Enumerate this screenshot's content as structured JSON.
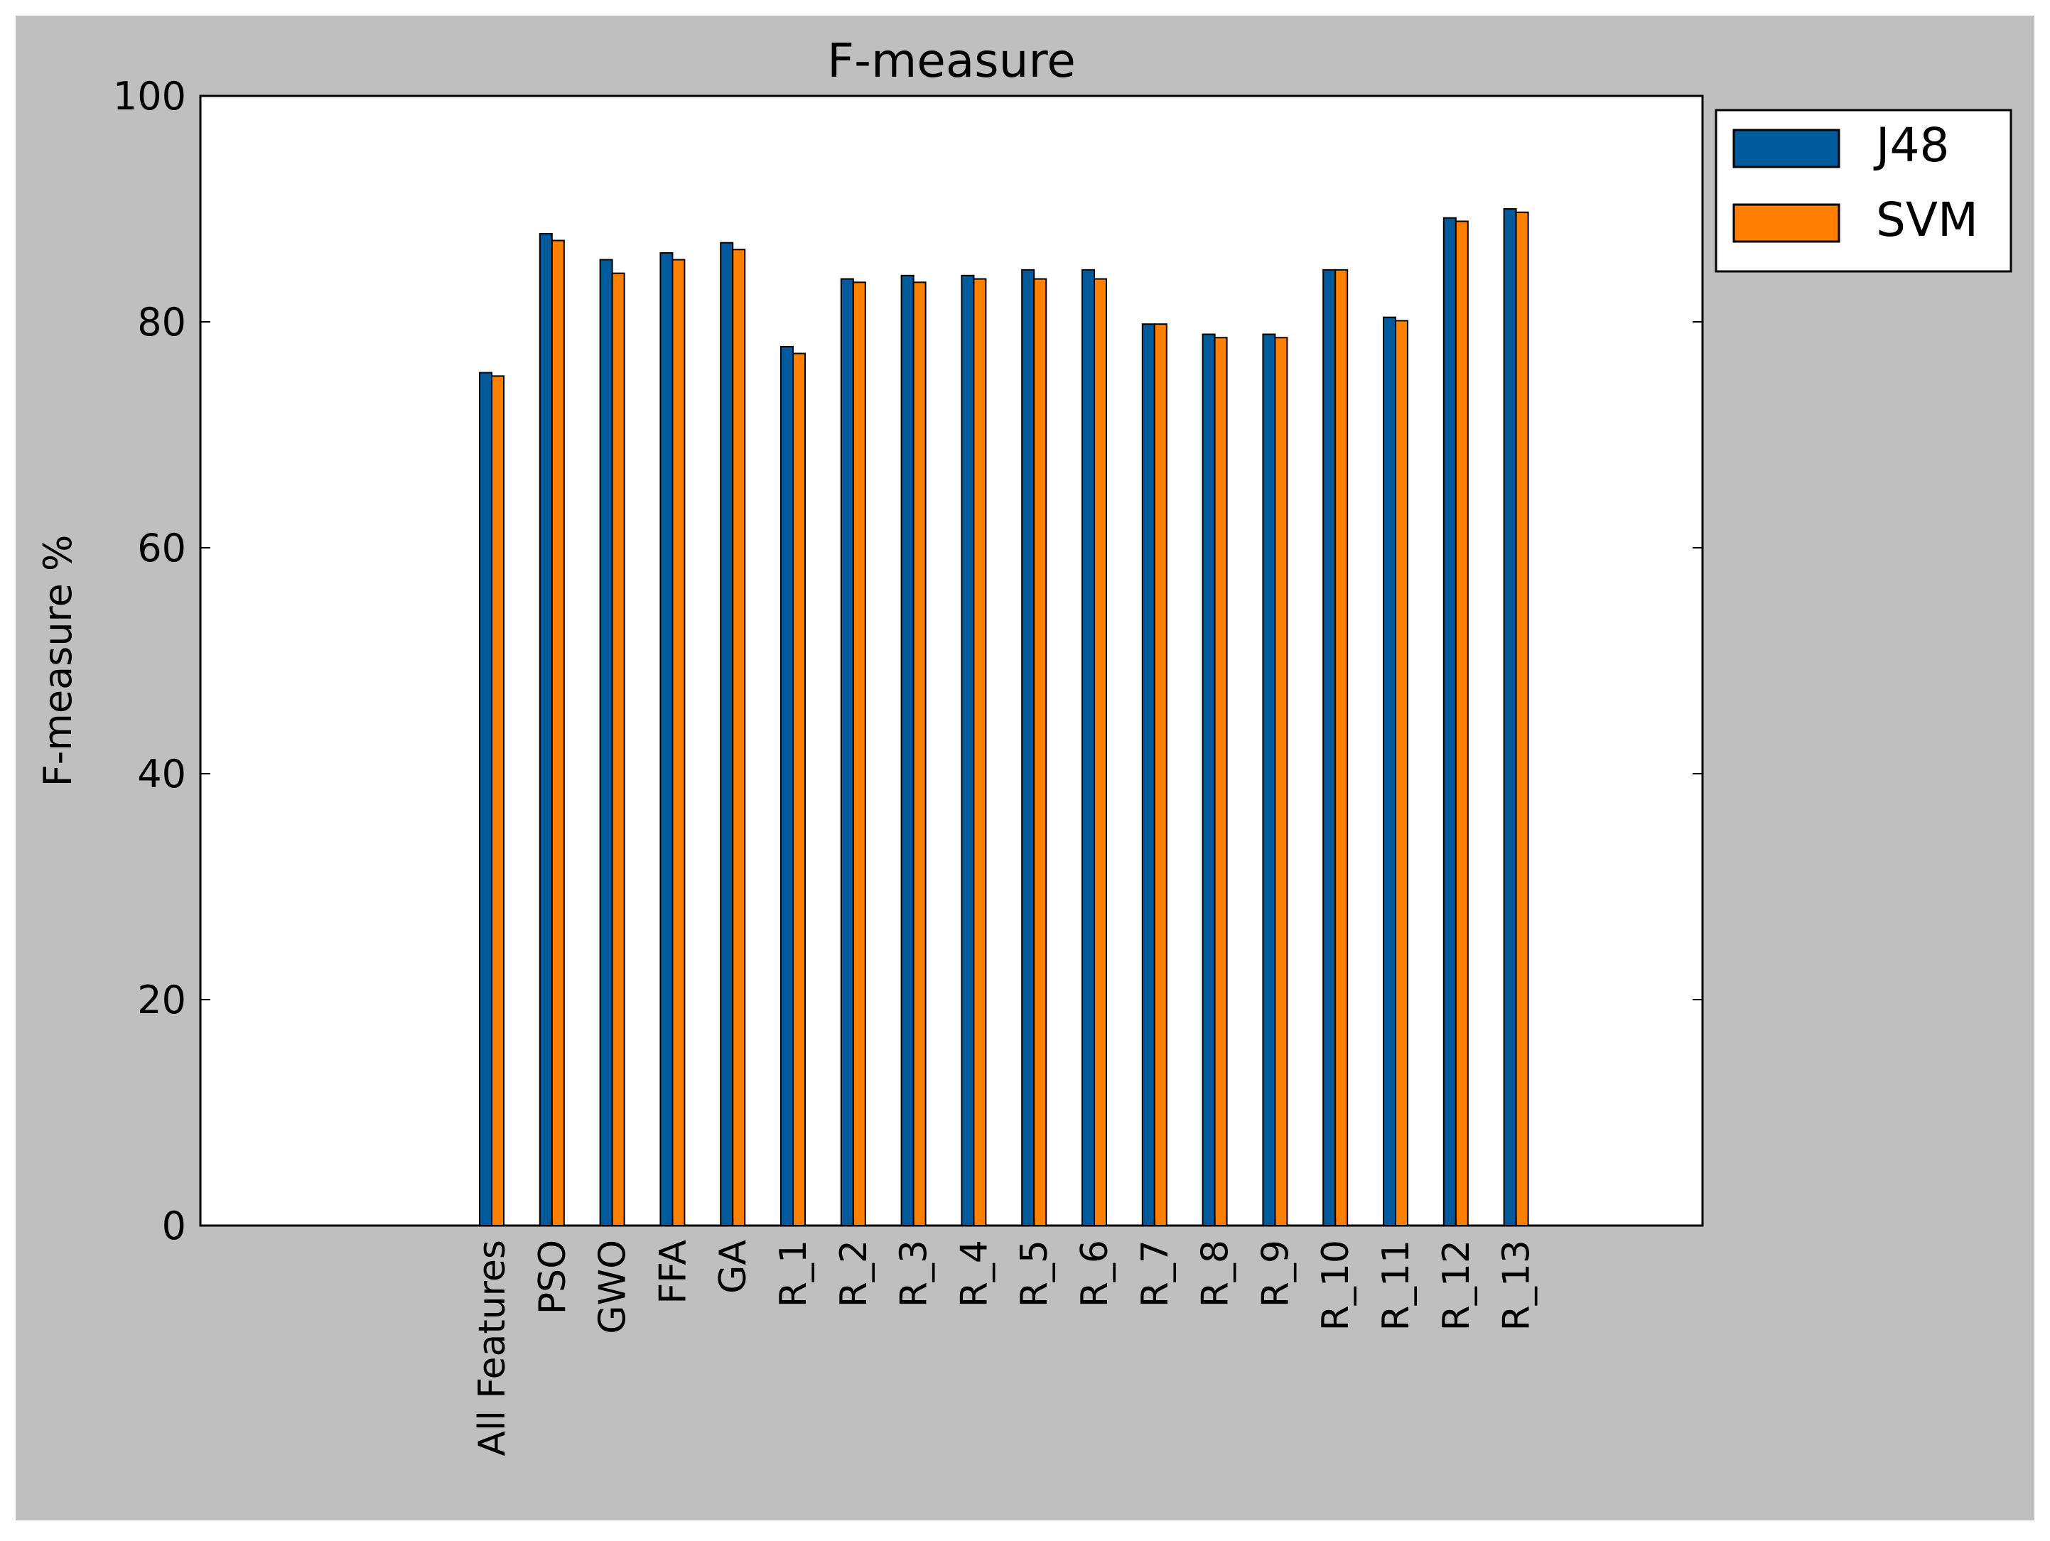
{
  "chart_data": {
    "type": "bar",
    "title": "F-measure",
    "xlabel": "",
    "ylabel": "F-measure %",
    "ylim": [
      0,
      100
    ],
    "yticks": [
      "0",
      "20",
      "40",
      "60",
      "80",
      "100"
    ],
    "grid": false,
    "legend_position": "outside-top-right",
    "categories": [
      "All Features",
      "PSO",
      "GWO",
      "FFA",
      "GA",
      "R_1",
      "R_2",
      "R_3",
      "R_4",
      "R_5",
      "R_6",
      "R_7",
      "R_8",
      "R_9",
      "R_10",
      "R_11",
      "R_12",
      "R_13"
    ],
    "series": [
      {
        "name": "J48",
        "color": "#005a9c",
        "values": [
          75.5,
          87.8,
          85.5,
          86.1,
          87.0,
          77.8,
          83.8,
          84.1,
          84.1,
          84.6,
          84.6,
          79.8,
          78.9,
          78.9,
          84.6,
          80.4,
          89.2,
          90.0
        ]
      },
      {
        "name": "SVM",
        "color": "#ff7f00",
        "values": [
          75.2,
          87.2,
          84.3,
          85.5,
          86.4,
          77.2,
          83.5,
          83.5,
          83.8,
          83.8,
          83.8,
          79.8,
          78.6,
          78.6,
          84.6,
          80.1,
          88.9,
          89.7
        ]
      }
    ]
  }
}
